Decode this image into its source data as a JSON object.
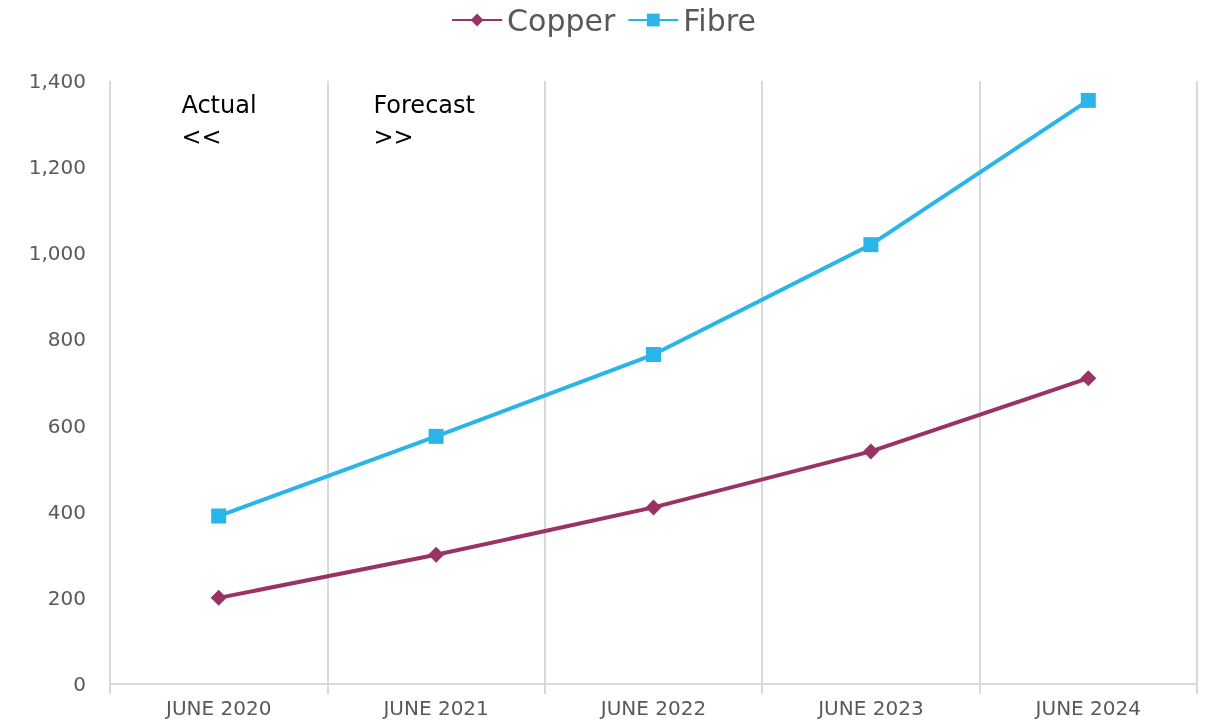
{
  "chart_data": {
    "type": "line",
    "categories": [
      "JUNE 2020",
      "JUNE 2021",
      "JUNE 2022",
      "JUNE 2023",
      "JUNE 2024"
    ],
    "series": [
      {
        "name": "Copper",
        "color": "#993366",
        "marker": "diamond",
        "values": [
          200,
          300,
          410,
          540,
          710
        ]
      },
      {
        "name": "Fibre",
        "color": "#29b5e8",
        "marker": "square",
        "values": [
          390,
          575,
          765,
          1020,
          1355
        ]
      }
    ],
    "ylim": [
      0,
      1400
    ],
    "yticks": [
      0,
      200,
      400,
      600,
      800,
      {
        "value": 1000,
        "label": "1,000"
      },
      {
        "value": 1200,
        "label": "1,200"
      },
      {
        "value": 1400,
        "label": "1,400"
      }
    ],
    "grid": "x",
    "legend": "top",
    "annotations": [
      "Actual\n<<",
      "Forecast\n>>"
    ]
  }
}
